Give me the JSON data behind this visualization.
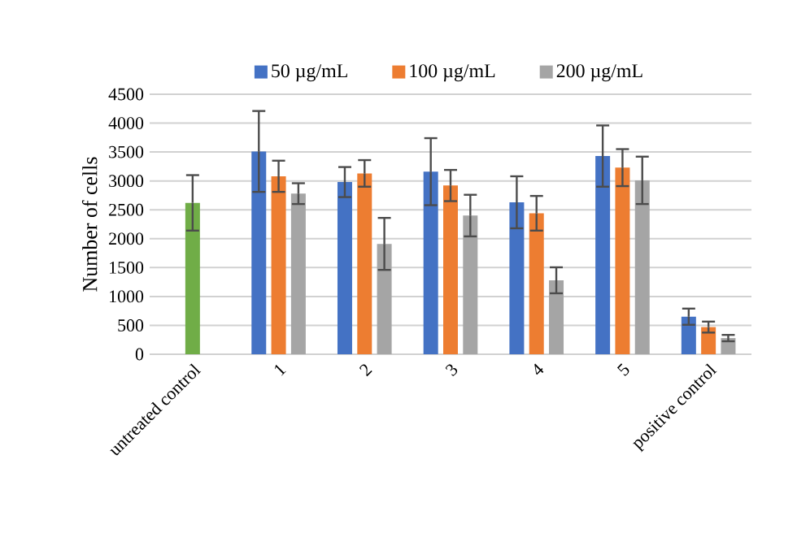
{
  "chart_data": {
    "type": "bar",
    "ylabel": "Number of cells",
    "categories": [
      "untreated control",
      "1",
      "2",
      "3",
      "4",
      "5",
      "positive control"
    ],
    "series": [
      {
        "name": "50 µg/mL",
        "color": "#4472c4",
        "values": [
          null,
          3510,
          2980,
          3160,
          2630,
          3430,
          650
        ],
        "errors": [
          null,
          700,
          260,
          580,
          450,
          530,
          140
        ]
      },
      {
        "name": "100 µg/mL",
        "color": "#ed7d31",
        "values": [
          null,
          3080,
          3130,
          2920,
          2440,
          3230,
          470
        ],
        "errors": [
          null,
          270,
          230,
          270,
          300,
          320,
          95
        ]
      },
      {
        "name": "200 µg/mL",
        "color": "#a5a5a5",
        "values": [
          null,
          2780,
          1910,
          2400,
          1280,
          3010,
          280
        ],
        "errors": [
          null,
          180,
          450,
          360,
          225,
          410,
          55
        ]
      },
      {
        "color": "#70ad47",
        "values": [
          2620,
          null,
          null,
          null,
          null,
          null,
          null
        ],
        "errors": [
          480,
          null,
          null,
          null,
          null,
          null,
          null
        ]
      }
    ],
    "ylim": [
      0,
      4500
    ],
    "yticks": [
      0,
      500,
      1000,
      1500,
      2000,
      2500,
      3000,
      3500,
      4000,
      4500
    ],
    "grid": "y",
    "legend": "top"
  }
}
